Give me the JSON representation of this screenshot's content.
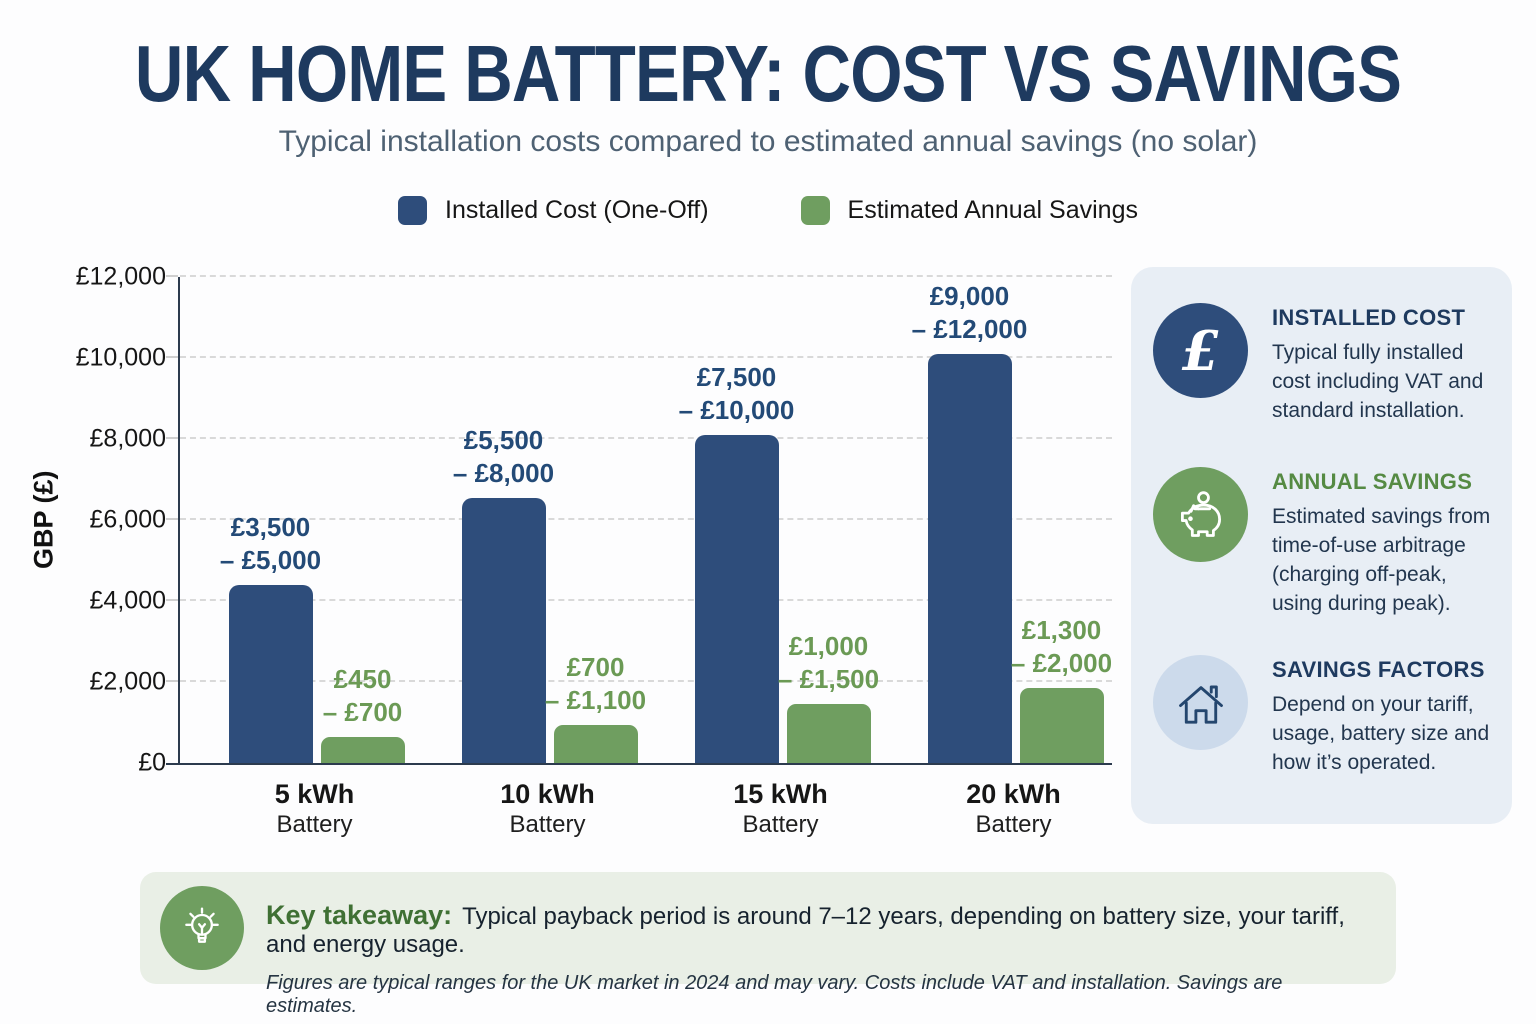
{
  "title": "UK HOME BATTERY: COST VS SAVINGS",
  "subtitle": "Typical installation costs compared to estimated annual savings (no solar)",
  "colors": {
    "navy_bar": "#2e4d7b",
    "green_bar": "#6f9e60",
    "navy_text": "#1e3a5f",
    "green_text": "#6b9a55",
    "sidebar_bg": "#e8eef5",
    "takeaway_bg": "#e9efe6"
  },
  "legend": [
    {
      "label": "Installed Cost (One-Off)",
      "color": "#2e4d7b"
    },
    {
      "label": "Estimated Annual Savings",
      "color": "#6f9e60"
    }
  ],
  "chart_data": {
    "type": "bar",
    "ylabel": "GBP (£)",
    "ylim": [
      0,
      12000
    ],
    "ytick_step": 2000,
    "ytick_labels": [
      "£0",
      "£2,000",
      "£4,000",
      "£6,000",
      "£8,000",
      "£10,000",
      "£12,000"
    ],
    "grid": "dashed horizontal",
    "legend_position": "top",
    "categories": [
      {
        "size": "5 kWh",
        "sub": "Battery"
      },
      {
        "size": "10 kWh",
        "sub": "Battery"
      },
      {
        "size": "15 kWh",
        "sub": "Battery"
      },
      {
        "size": "20 kWh",
        "sub": "Battery"
      }
    ],
    "series": [
      {
        "name": "Installed Cost (One-Off)",
        "color": "#2e4d7b",
        "label_color": "#234a77",
        "values": [
          4400,
          6550,
          8100,
          10100
        ],
        "range_low": [
          3500,
          5500,
          7500,
          9000
        ],
        "range_high": [
          5000,
          8000,
          10000,
          12000
        ],
        "label_lines": [
          [
            "£3,500",
            "– £5,000"
          ],
          [
            "£5,500",
            "– £8,000"
          ],
          [
            "£7,500",
            "– £10,000"
          ],
          [
            "£9,000",
            "– £12,000"
          ]
        ]
      },
      {
        "name": "Estimated Annual Savings",
        "color": "#6f9e60",
        "label_color": "#6b9a55",
        "values": [
          650,
          950,
          1450,
          1850
        ],
        "range_low": [
          450,
          700,
          1000,
          1300
        ],
        "range_high": [
          700,
          1100,
          1500,
          2000
        ],
        "label_lines": [
          [
            "£450",
            "– £700"
          ],
          [
            "£700",
            "– £1,100"
          ],
          [
            "£1,000",
            "– £1,500"
          ],
          [
            "£1,300",
            "– £2,000"
          ]
        ]
      }
    ]
  },
  "sidebar": {
    "items": [
      {
        "icon": "pound-icon",
        "icon_bg": "#2e4d7b",
        "title": "INSTALLED COST",
        "title_color": "#1e3a5f",
        "body": "Typical fully installed cost including VAT and standard installation."
      },
      {
        "icon": "piggy-bank-icon",
        "icon_bg": "#6f9e60",
        "title": "ANNUAL SAVINGS",
        "title_color": "#558a43",
        "body": "Estimated savings from time-of-use arbitrage (charging off-peak, using during peak)."
      },
      {
        "icon": "house-icon",
        "icon_bg": "#ccdaeb",
        "title": "SAVINGS FACTORS",
        "title_color": "#1e3a5f",
        "body": "Depend on your tariff, usage, battery size and how it’s operated."
      }
    ]
  },
  "takeaway": {
    "icon": "lightbulb-icon",
    "label": "Key takeaway:",
    "text": "Typical payback period is around 7–12 years, depending on battery size, your tariff, and energy usage.",
    "footnote": "Figures are typical ranges for the UK market in 2024 and may vary. Costs include VAT and installation. Savings are estimates."
  }
}
